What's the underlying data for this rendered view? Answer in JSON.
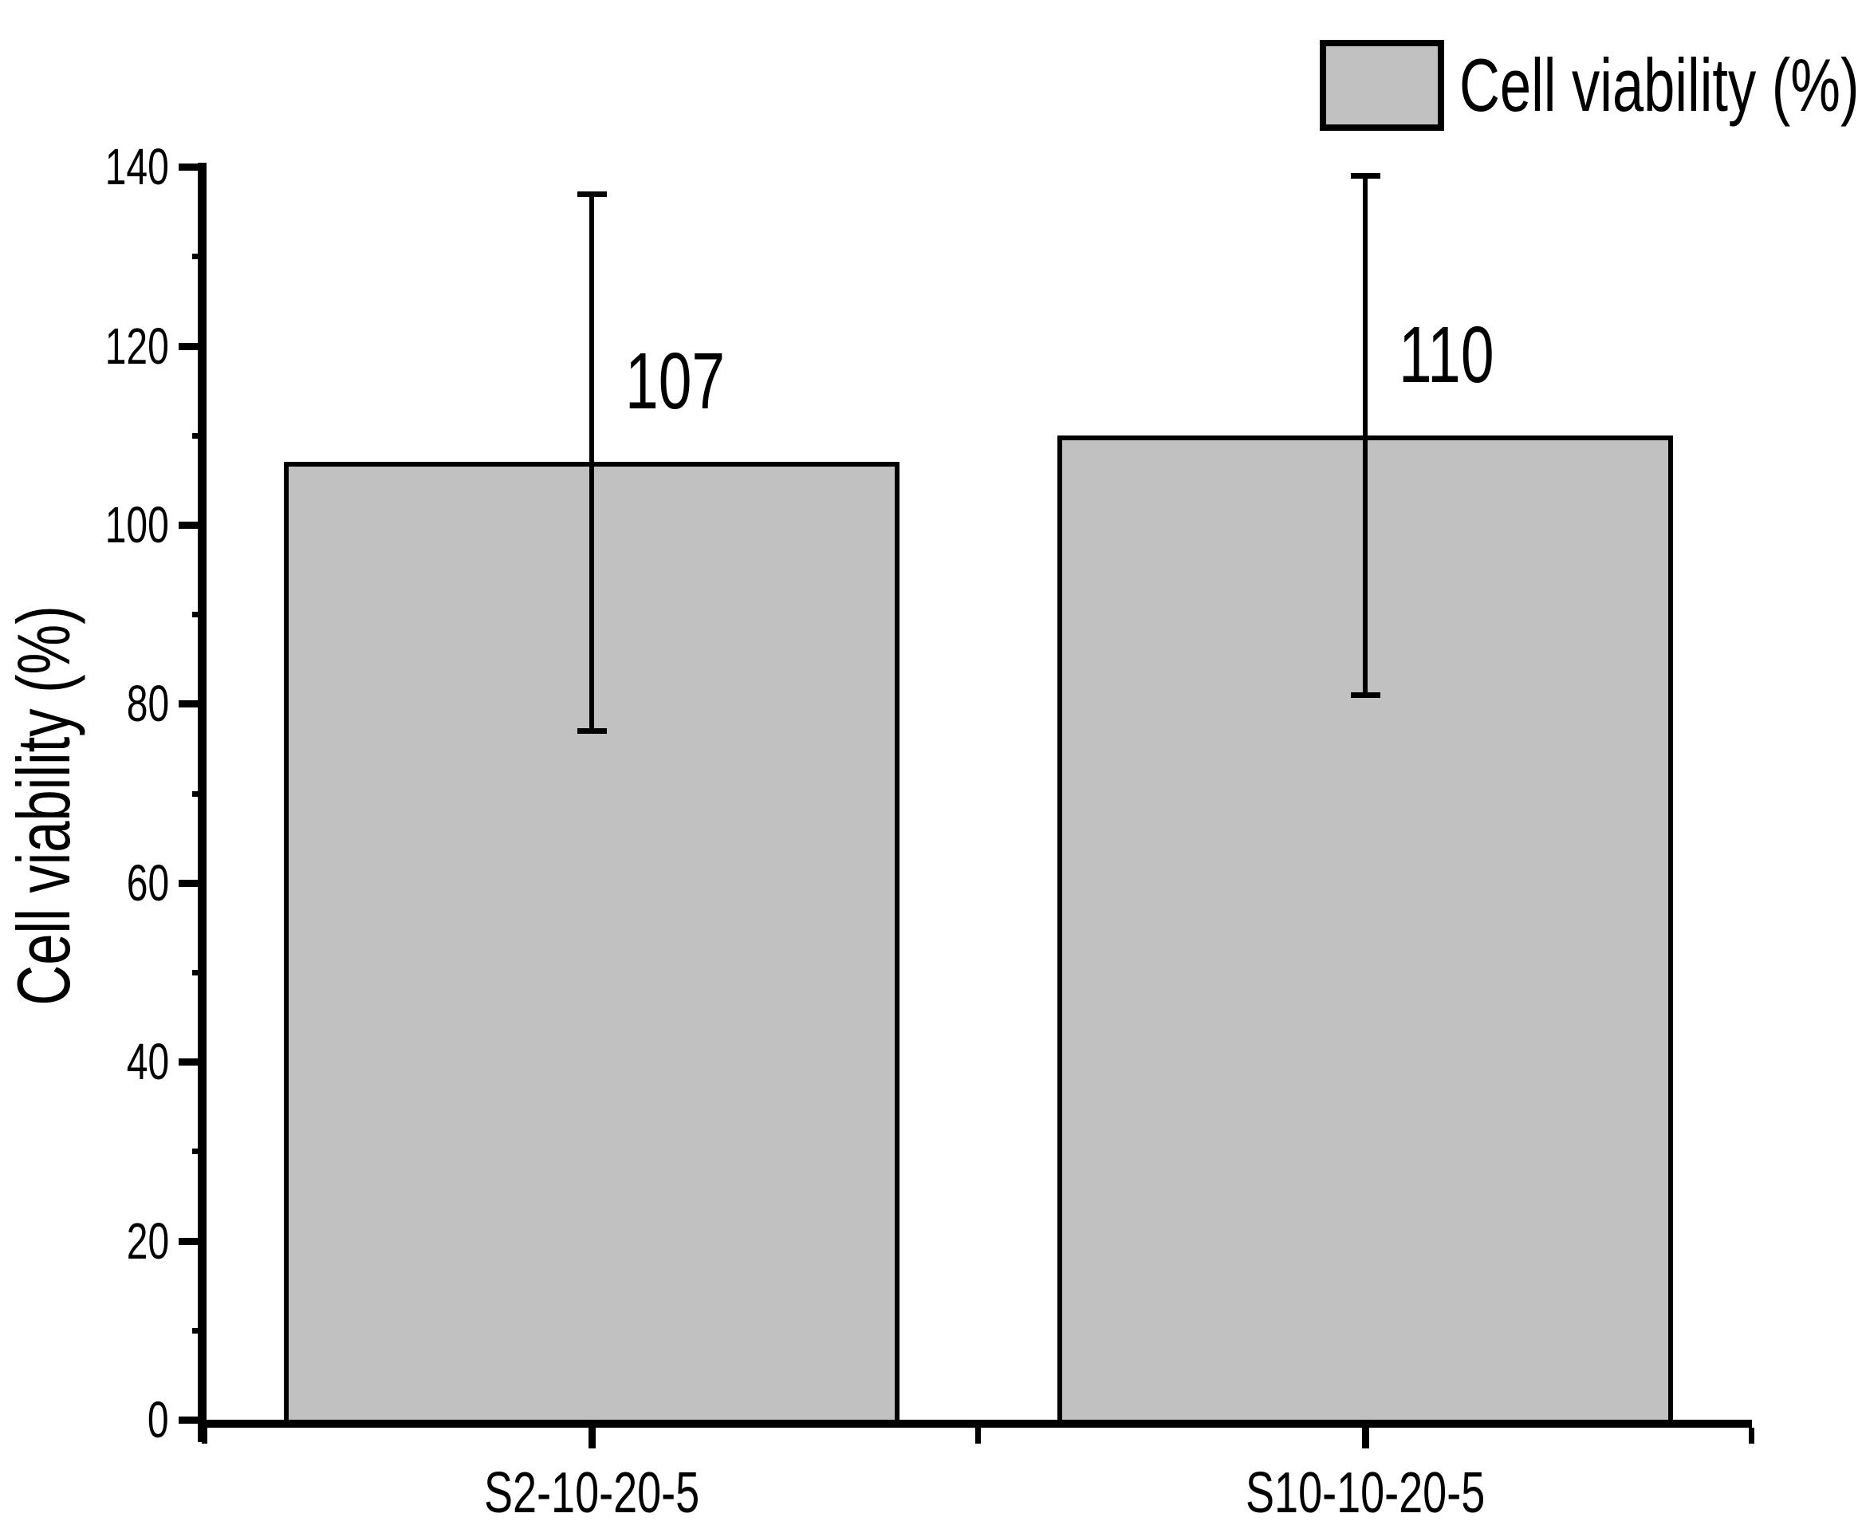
{
  "chart_data": {
    "type": "bar",
    "categories": [
      "S2-10-20-5",
      "S10-10-20-5"
    ],
    "values": [
      107,
      110
    ],
    "value_labels": [
      "107",
      "110"
    ],
    "error_low": [
      77,
      81
    ],
    "error_high": [
      137,
      139
    ],
    "title": "",
    "xlabel": "",
    "ylabel": "Cell viability (%)",
    "ylim": [
      0,
      140
    ],
    "yticks": [
      0,
      20,
      40,
      60,
      80,
      100,
      120,
      140
    ],
    "minor_yticks": [
      10,
      30,
      50,
      70,
      90,
      110,
      130
    ],
    "legend": {
      "label": "Cell viability (%)",
      "position": "top-right"
    },
    "bar_fill": "#c1c1c1",
    "bar_border": "#000000",
    "axis_color": "#000000",
    "text_color": "#000000",
    "background": "#ffffff",
    "grid": false
  }
}
